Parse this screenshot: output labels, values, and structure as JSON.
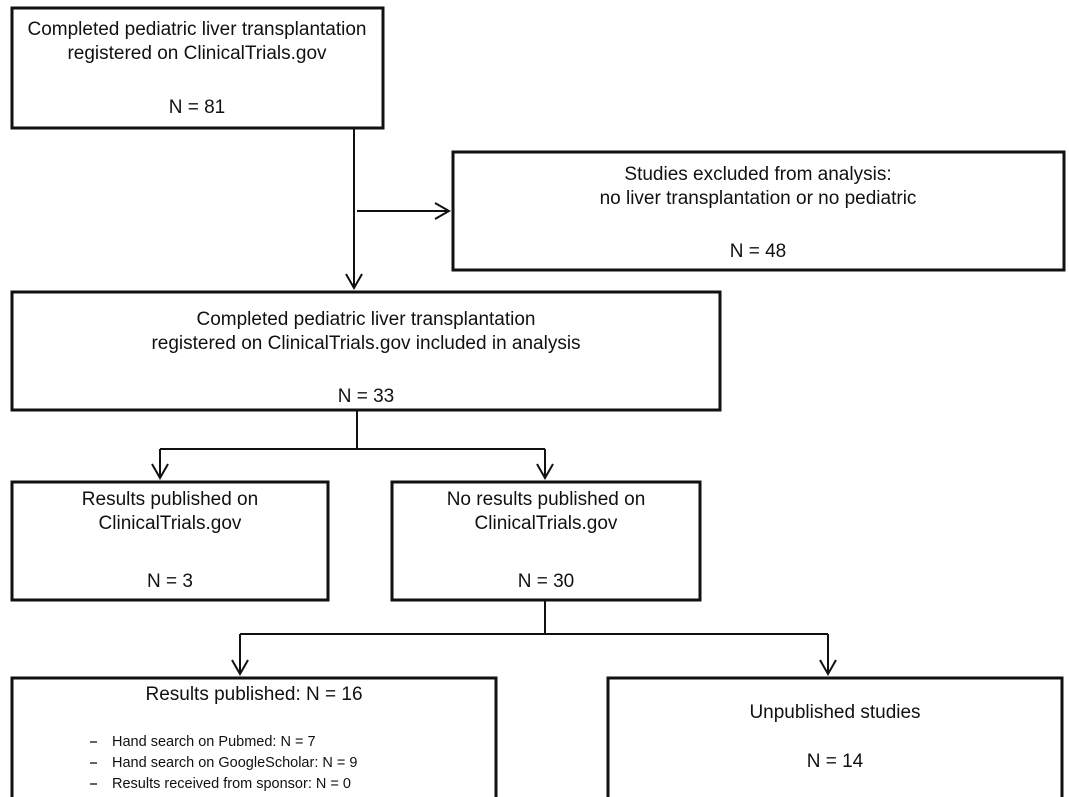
{
  "nodes": [
    {
      "lines": [
        "Completed pediatric liver transplantation",
        "registered on ClinicalTrials.gov",
        "N = 81"
      ]
    },
    {
      "lines": [
        "Studies excluded from analysis:",
        "no liver transplantation or no pediatric",
        "N = 48"
      ]
    },
    {
      "lines": [
        "Completed pediatric liver transplantation",
        "registered on ClinicalTrials.gov included in analysis",
        "N = 33"
      ]
    },
    {
      "lines": [
        "Results published on",
        "ClinicalTrials.gov",
        "N = 3"
      ]
    },
    {
      "lines": [
        "No results published on",
        "ClinicalTrials.gov",
        "N = 30"
      ]
    },
    {
      "lines": [
        "Results published: N = 16"
      ],
      "items": [
        "Hand search on Pubmed: N = 7",
        "Hand search on GoogleScholar: N = 9",
        "Results received from sponsor: N = 0"
      ]
    },
    {
      "lines": [
        "Unpublished studies",
        "N = 14"
      ]
    }
  ]
}
